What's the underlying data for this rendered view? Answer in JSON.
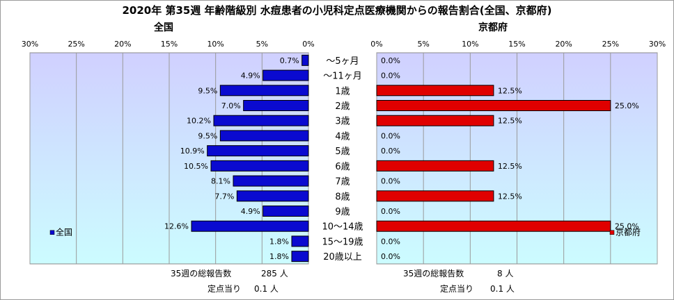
{
  "title": "2020年 第35週 年齢階級別 水痘患者の小児科定点医療機関からの報告割合(全国、京都府)",
  "colors": {
    "national_bar": "#0a0ad0",
    "kyoto_bar": "#e00000",
    "plot_bg_top": "#d0d0ff",
    "plot_bg_bottom": "#ccfcff",
    "grid": "#9a9a9a"
  },
  "chart_data": [
    {
      "type": "bar",
      "orientation": "horizontal",
      "direction": "right-to-left",
      "title": "全国",
      "categories": [
        "〜5ヶ月",
        "〜11ヶ月",
        "1歳",
        "2歳",
        "3歳",
        "4歳",
        "5歳",
        "6歳",
        "7歳",
        "8歳",
        "9歳",
        "10〜14歳",
        "15〜19歳",
        "20歳以上"
      ],
      "series": [
        {
          "name": "全国",
          "values": [
            0.7,
            4.9,
            9.5,
            7.0,
            10.2,
            9.5,
            10.9,
            10.5,
            8.1,
            7.7,
            4.9,
            12.6,
            1.8,
            1.8
          ]
        }
      ],
      "data_labels": [
        "0.7%",
        "4.9%",
        "9.5%",
        "7.0%",
        "10.2%",
        "9.5%",
        "10.9%",
        "10.5%",
        "8.1%",
        "7.7%",
        "4.9%",
        "12.6%",
        "1.8%",
        "1.8%"
      ],
      "xlim": [
        0,
        30
      ],
      "ticks": [
        "30%",
        "25%",
        "20%",
        "15%",
        "10%",
        "5%",
        "0%"
      ],
      "grid": true,
      "legend": "left",
      "footer": [
        {
          "label": "35週の総報告数",
          "value": "285 人"
        },
        {
          "label": "定点当り",
          "value": "0.1 人"
        }
      ]
    },
    {
      "type": "bar",
      "orientation": "horizontal",
      "direction": "left-to-right",
      "title": "京都府",
      "categories": [
        "〜5ヶ月",
        "〜11ヶ月",
        "1歳",
        "2歳",
        "3歳",
        "4歳",
        "5歳",
        "6歳",
        "7歳",
        "8歳",
        "9歳",
        "10〜14歳",
        "15〜19歳",
        "20歳以上"
      ],
      "series": [
        {
          "name": "京都府",
          "values": [
            0.0,
            0.0,
            12.5,
            25.0,
            12.5,
            0.0,
            0.0,
            12.5,
            0.0,
            12.5,
            0.0,
            25.0,
            0.0,
            0.0
          ]
        }
      ],
      "data_labels": [
        "0.0%",
        "0.0%",
        "12.5%",
        "25.0%",
        "12.5%",
        "0.0%",
        "0.0%",
        "12.5%",
        "0.0%",
        "12.5%",
        "0.0%",
        "25.0%",
        "0.0%",
        "0.0%"
      ],
      "xlim": [
        0,
        30
      ],
      "ticks": [
        "0%",
        "5%",
        "10%",
        "15%",
        "20%",
        "25%",
        "30%"
      ],
      "grid": true,
      "legend": "right",
      "footer": [
        {
          "label": "35週の総報告数",
          "value": "8 人"
        },
        {
          "label": "定点当り",
          "value": "0.1 人"
        }
      ]
    }
  ]
}
